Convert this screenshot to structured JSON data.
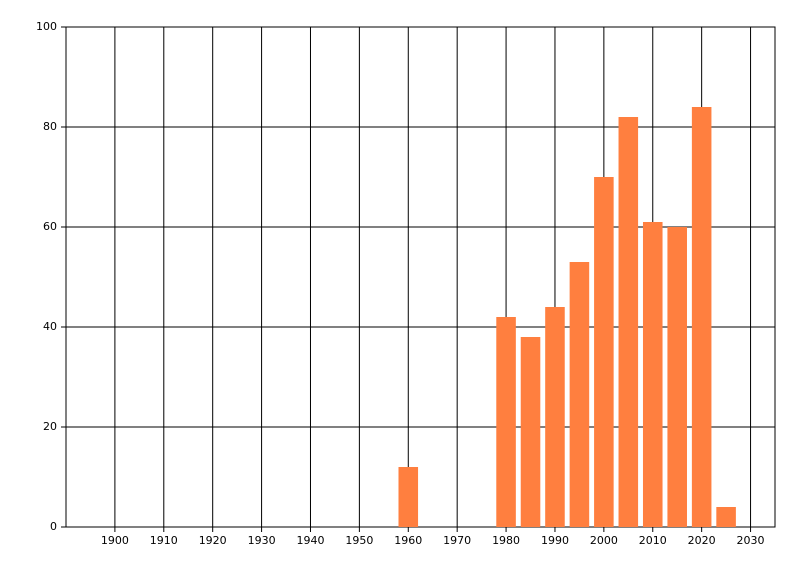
{
  "chart_data": {
    "type": "bar",
    "x": [
      1960,
      1980,
      1985,
      1990,
      1995,
      2000,
      2005,
      2010,
      2015,
      2020,
      2025
    ],
    "values": [
      12,
      42,
      38,
      44,
      53,
      70,
      82,
      61,
      60,
      84,
      4
    ],
    "color": "#ff7f3f",
    "xlim": [
      1890,
      2035
    ],
    "xticks": [
      1900,
      1910,
      1920,
      1930,
      1940,
      1950,
      1960,
      1970,
      1980,
      1990,
      2000,
      2010,
      2020,
      2030
    ],
    "ylim": [
      0,
      100
    ],
    "yticks": [
      0,
      20,
      40,
      60,
      80,
      100
    ],
    "grid": true
  }
}
